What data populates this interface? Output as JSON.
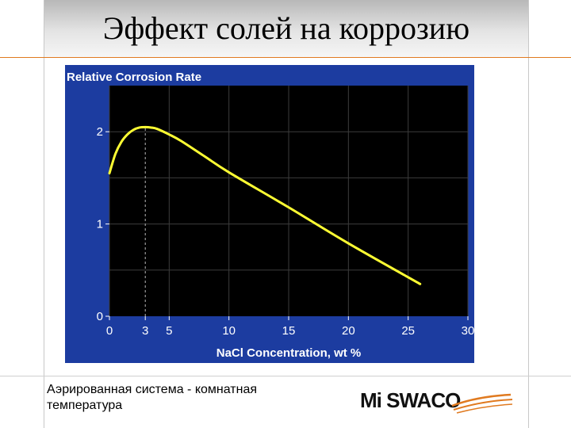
{
  "slide": {
    "title": "Эффект солей на коррозию",
    "caption_line1": "Аэрированная система  - комнатная",
    "caption_line2": "температура",
    "logo_text": "Mi SWACO"
  },
  "colors": {
    "panel": "#1c3ca0",
    "plot_bg": "#000000",
    "curve": "#ffff33",
    "grid": "#3c3c3c",
    "accent_line": "#e07a20"
  },
  "chart_data": {
    "type": "line",
    "title": "Relative Corrosion Rate",
    "xlabel": "NaCl Concentration, wt %",
    "ylabel": "",
    "xlim": [
      0,
      30
    ],
    "ylim": [
      0,
      2.5
    ],
    "x_ticks": [
      0,
      3,
      5,
      10,
      15,
      20,
      25,
      30
    ],
    "y_ticks": [
      0,
      1,
      2
    ],
    "grid": true,
    "reference_line": {
      "x": 3,
      "y_to": 2.05
    },
    "series": [
      {
        "name": "",
        "x": [
          0,
          0.5,
          1,
          1.5,
          2,
          2.5,
          3,
          3.5,
          4,
          5,
          6,
          8,
          10,
          15,
          20,
          26
        ],
        "y": [
          1.55,
          1.76,
          1.89,
          1.97,
          2.02,
          2.045,
          2.05,
          2.045,
          2.03,
          1.97,
          1.9,
          1.73,
          1.56,
          1.18,
          0.79,
          0.35
        ]
      }
    ]
  }
}
